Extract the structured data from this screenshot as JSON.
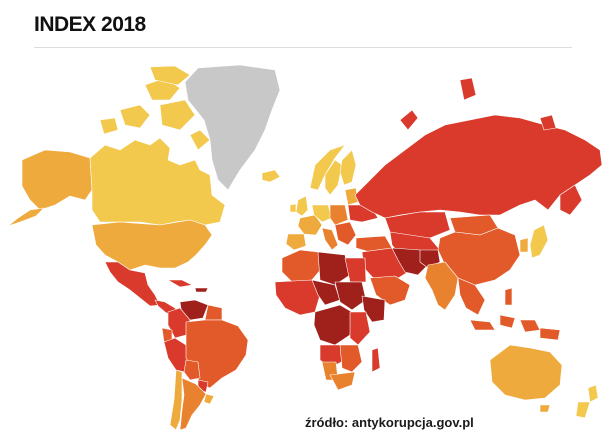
{
  "header": {
    "title": "INDEX 2018"
  },
  "map": {
    "legend_colors": {
      "very_clean": "#f2c94c",
      "clean": "#eeaa3c",
      "moderate": "#e9822e",
      "corrupt": "#e35a2a",
      "highly_corrupt": "#d93a2b",
      "very_highly_corrupt": "#a0201c",
      "no_data": "#c8c8c8"
    }
  },
  "footer": {
    "source": "źródło: antykorupcja.gov.pl"
  }
}
